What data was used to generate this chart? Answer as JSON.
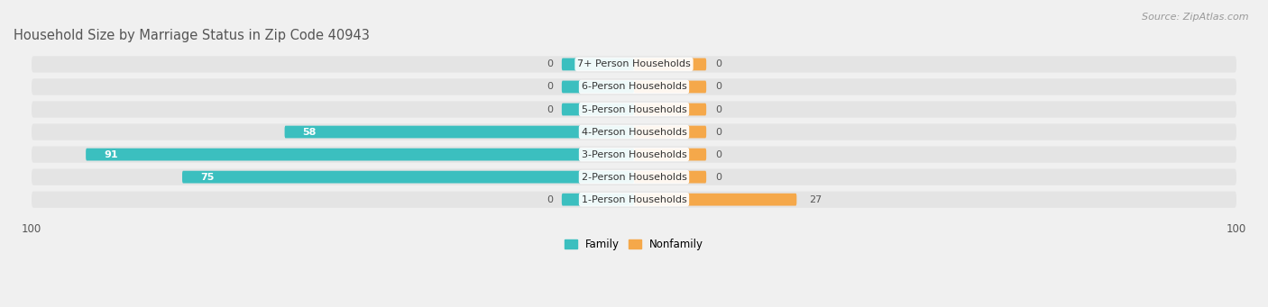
{
  "title": "Household Size by Marriage Status in Zip Code 40943",
  "source": "Source: ZipAtlas.com",
  "categories": [
    "7+ Person Households",
    "6-Person Households",
    "5-Person Households",
    "4-Person Households",
    "3-Person Households",
    "2-Person Households",
    "1-Person Households"
  ],
  "family_values": [
    0,
    0,
    0,
    58,
    91,
    75,
    0
  ],
  "nonfamily_values": [
    0,
    0,
    0,
    0,
    0,
    0,
    27
  ],
  "family_color": "#3BBFBF",
  "nonfamily_color": "#F5A84A",
  "family_label": "Family",
  "nonfamily_label": "Nonfamily",
  "xlim": 100,
  "background_color": "#f0f0f0",
  "row_bg_color": "#e4e4e4",
  "bar_height": 0.55,
  "title_fontsize": 10.5,
  "source_fontsize": 8,
  "label_fontsize": 8,
  "tick_fontsize": 8.5,
  "category_fontsize": 8,
  "stub_size": 12
}
